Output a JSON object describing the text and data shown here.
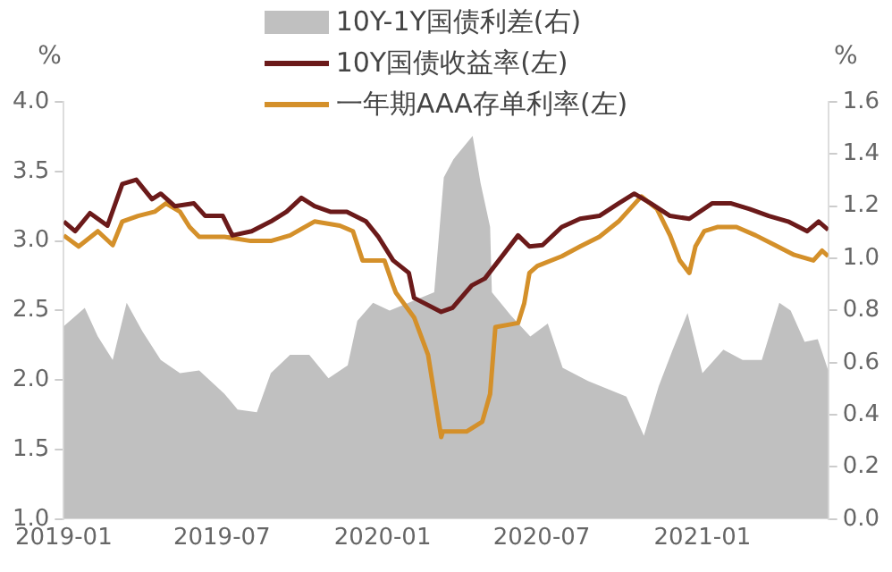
{
  "chart_data": {
    "type": "line",
    "ylabel": "%",
    "y2label": "%",
    "xlim": [
      "2019-01-01",
      "2021-05-25"
    ],
    "xticks": [
      "2019-01",
      "2019-07",
      "2020-01",
      "2020-07",
      "2021-01"
    ],
    "ylim": [
      1.0,
      4.0
    ],
    "yticks": [
      {
        "value": 1.0,
        "label": "1.0"
      },
      {
        "value": 1.5,
        "label": "1.5"
      },
      {
        "value": 2.0,
        "label": "2.0"
      },
      {
        "value": 2.5,
        "label": "2.5"
      },
      {
        "value": 3.0,
        "label": "3.0"
      },
      {
        "value": 3.5,
        "label": "3.5"
      },
      {
        "value": 4.0,
        "label": "4.0"
      }
    ],
    "y2lim": [
      0.0,
      1.6
    ],
    "y2ticks": [
      {
        "value": 0.0,
        "label": "0.0"
      },
      {
        "value": 0.2,
        "label": "0.2"
      },
      {
        "value": 0.4,
        "label": "0.4"
      },
      {
        "value": 0.6,
        "label": "0.6"
      },
      {
        "value": 0.8,
        "label": "0.8"
      },
      {
        "value": 1.0,
        "label": "1.0"
      },
      {
        "value": 1.2,
        "label": "1.2"
      },
      {
        "value": 1.4,
        "label": "1.4"
      },
      {
        "value": 1.6,
        "label": "1.6"
      }
    ],
    "grid": false,
    "legend": "top",
    "marker": "none",
    "line_style": "solid",
    "series": [
      {
        "name": "10Y-1Y国债利差(右)",
        "type": "area",
        "axis": "y2",
        "color": "#c0c0c0",
        "x": [
          "2019-01-01",
          "2019-01-25",
          "2019-02-09",
          "2019-02-26",
          "2019-03-14",
          "2019-04-01",
          "2019-04-22",
          "2019-05-14",
          "2019-06-05",
          "2019-07-04",
          "2019-07-19",
          "2019-08-10",
          "2019-08-26",
          "2019-09-17",
          "2019-10-09",
          "2019-10-31",
          "2019-11-22",
          "2019-12-03",
          "2019-12-21",
          "2020-01-09",
          "2020-02-29",
          "2020-03-11",
          "2020-03-22",
          "2020-04-13",
          "2020-04-22",
          "2020-05-03",
          "2020-05-05",
          "2020-05-27",
          "2020-06-18",
          "2020-07-08",
          "2020-07-25",
          "2020-08-23",
          "2020-09-14",
          "2020-10-06",
          "2020-10-26",
          "2020-11-12",
          "2020-11-28",
          "2020-12-15",
          "2021-01-01",
          "2021-01-25",
          "2021-02-16",
          "2021-03-10",
          "2021-03-30",
          "2021-04-12",
          "2021-04-28",
          "2021-05-13",
          "2021-05-25"
        ],
        "values": [
          0.74,
          0.81,
          0.7,
          0.61,
          0.83,
          0.72,
          0.61,
          0.56,
          0.57,
          0.48,
          0.42,
          0.41,
          0.56,
          0.63,
          0.63,
          0.54,
          0.59,
          0.76,
          0.83,
          0.8,
          0.87,
          1.31,
          1.38,
          1.47,
          1.29,
          1.12,
          0.87,
          0.78,
          0.7,
          0.75,
          0.58,
          0.53,
          0.5,
          0.47,
          0.32,
          0.51,
          0.65,
          0.79,
          0.56,
          0.65,
          0.61,
          0.61,
          0.83,
          0.8,
          0.68,
          0.69,
          0.57
        ]
      },
      {
        "name": "10Y国债收益率(左)",
        "axis": "y",
        "color": "#6b1a1a",
        "x": [
          "2019-01-01",
          "2019-01-14",
          "2019-01-31",
          "2019-02-20",
          "2019-03-09",
          "2019-03-25",
          "2019-04-12",
          "2019-04-22",
          "2019-05-08",
          "2019-05-30",
          "2019-06-12",
          "2019-07-02",
          "2019-07-13",
          "2019-08-04",
          "2019-08-26",
          "2019-09-13",
          "2019-09-30",
          "2019-10-15",
          "2019-11-02",
          "2019-11-21",
          "2019-12-13",
          "2019-12-27",
          "2020-01-13",
          "2020-01-31",
          "2020-02-06",
          "2020-03-08",
          "2020-03-21",
          "2020-04-12",
          "2020-04-27",
          "2020-05-13",
          "2020-06-04",
          "2020-06-17",
          "2020-07-02",
          "2020-07-24",
          "2020-08-14",
          "2020-09-05",
          "2020-09-27",
          "2020-10-15",
          "2020-11-03",
          "2020-11-25",
          "2020-12-17",
          "2021-01-12",
          "2021-02-03",
          "2021-02-24",
          "2021-03-18",
          "2021-04-09",
          "2021-05-01",
          "2021-05-14",
          "2021-05-25"
        ],
        "values": [
          3.14,
          3.07,
          3.2,
          3.11,
          3.41,
          3.44,
          3.3,
          3.34,
          3.25,
          3.27,
          3.18,
          3.18,
          3.04,
          3.07,
          3.14,
          3.21,
          3.31,
          3.25,
          3.21,
          3.21,
          3.14,
          3.03,
          2.86,
          2.77,
          2.59,
          2.49,
          2.52,
          2.68,
          2.73,
          2.86,
          3.04,
          2.96,
          2.97,
          3.1,
          3.16,
          3.18,
          3.27,
          3.34,
          3.27,
          3.18,
          3.16,
          3.27,
          3.27,
          3.23,
          3.18,
          3.14,
          3.07,
          3.14,
          3.08
        ]
      },
      {
        "name": "一年期AAA存单利率(左)",
        "axis": "y",
        "color": "#d4902a",
        "x": [
          "2019-01-01",
          "2019-01-18",
          "2019-02-09",
          "2019-02-26",
          "2019-03-09",
          "2019-03-27",
          "2019-04-15",
          "2019-04-28",
          "2019-05-14",
          "2019-05-25",
          "2019-06-05",
          "2019-07-04",
          "2019-08-03",
          "2019-08-26",
          "2019-09-17",
          "2019-10-15",
          "2019-11-13",
          "2019-11-28",
          "2019-12-09",
          "2020-01-03",
          "2020-01-13",
          "2020-01-16",
          "2020-02-06",
          "2020-02-22",
          "2020-03-08",
          "2020-03-10",
          "2020-04-06",
          "2020-04-24",
          "2020-05-03",
          "2020-05-09",
          "2020-06-04",
          "2020-06-11",
          "2020-06-17",
          "2020-06-26",
          "2020-07-24",
          "2020-08-14",
          "2020-09-05",
          "2020-09-27",
          "2020-10-23",
          "2020-11-10",
          "2020-11-25",
          "2020-12-06",
          "2020-12-17",
          "2020-12-24",
          "2021-01-03",
          "2021-01-18",
          "2021-02-09",
          "2021-03-03",
          "2021-03-25",
          "2021-04-16",
          "2021-05-08",
          "2021-05-18",
          "2021-05-25"
        ],
        "values": [
          3.04,
          2.96,
          3.07,
          2.97,
          3.14,
          3.18,
          3.21,
          3.27,
          3.21,
          3.1,
          3.03,
          3.03,
          3.0,
          3.0,
          3.04,
          3.14,
          3.11,
          3.07,
          2.86,
          2.86,
          2.68,
          2.63,
          2.45,
          2.18,
          1.59,
          1.63,
          1.63,
          1.7,
          1.9,
          2.38,
          2.41,
          2.55,
          2.77,
          2.82,
          2.89,
          2.96,
          3.03,
          3.14,
          3.32,
          3.23,
          3.04,
          2.86,
          2.77,
          2.96,
          3.07,
          3.1,
          3.1,
          3.04,
          2.97,
          2.9,
          2.86,
          2.93,
          2.89
        ]
      }
    ]
  }
}
